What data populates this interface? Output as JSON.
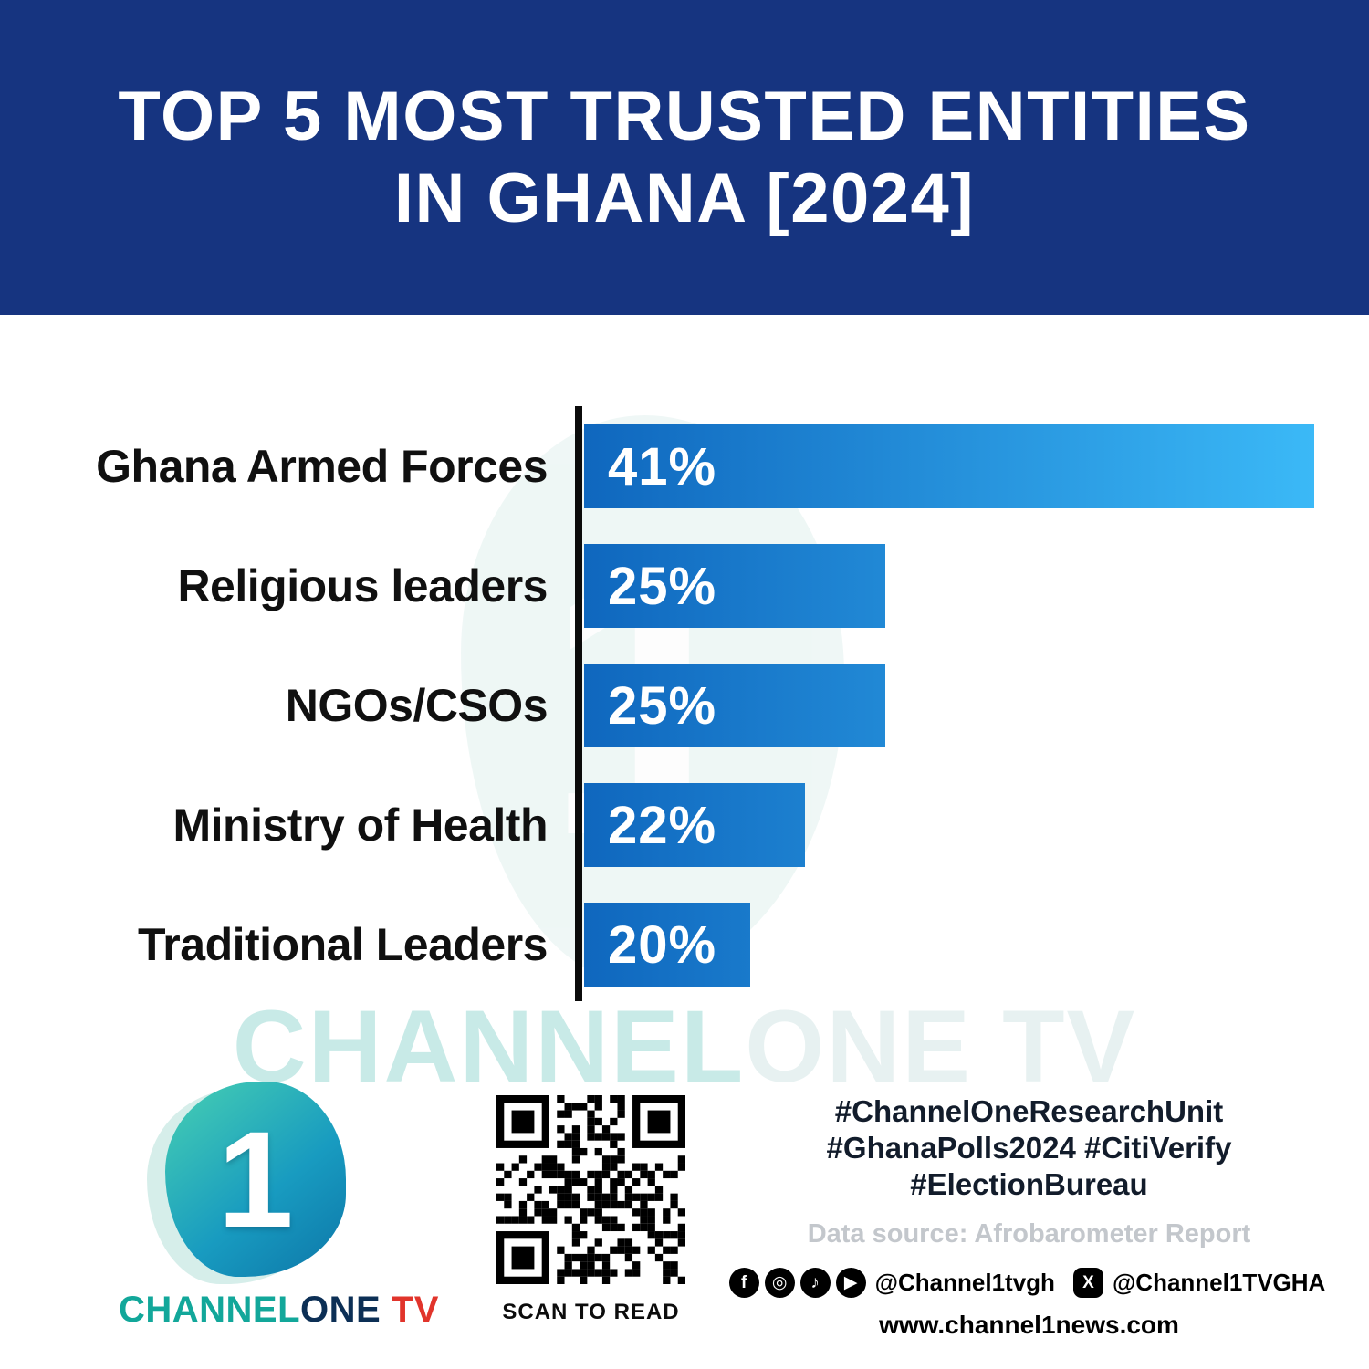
{
  "header": {
    "title_line1": "TOP 5 MOST TRUSTED ENTITIES",
    "title_line2": "IN GHANA [2024]"
  },
  "chart_data": {
    "type": "bar",
    "orientation": "horizontal",
    "title": "Top 5 Most Trusted Entities in Ghana [2024]",
    "categories": [
      "Ghana Armed Forces",
      "Religious leaders",
      "NGOs/CSOs",
      "Ministry of Health",
      "Traditional Leaders"
    ],
    "values": [
      41,
      25,
      25,
      22,
      20
    ],
    "value_labels": [
      "41%",
      "25%",
      "25%",
      "22%",
      "20%"
    ],
    "xlim": [
      0,
      41
    ],
    "grid": false,
    "legend": false,
    "bar_color_left": "#0F67BE",
    "bar_color_right": "#3BB9F7",
    "display_width_pct": [
      100,
      41.3,
      41.3,
      30.2,
      22.8
    ]
  },
  "watermark": {
    "part1": "CHANNEL",
    "part2": "ONE TV"
  },
  "footer": {
    "logo": {
      "numeral": "1",
      "brand_channel": "CHANNEL",
      "brand_one": "ONE",
      "brand_tv": " TV"
    },
    "qr_caption": "SCAN TO READ",
    "hashtag_line1": "#ChannelOneResearchUnit",
    "hashtag_line2": "#GhanaPolls2024 #CitiVerify",
    "hashtag_line3": "#ElectionBureau",
    "data_source": "Data source: Afrobarometer Report",
    "social": {
      "facebook_glyph": "f",
      "instagram_glyph": "◎",
      "tiktok_glyph": "♪",
      "youtube_glyph": "▶",
      "x_glyph": "X",
      "handle1": "@Channel1tvgh",
      "handle2": "@Channel1TVGHA"
    },
    "website": "www.channel1news.com"
  }
}
